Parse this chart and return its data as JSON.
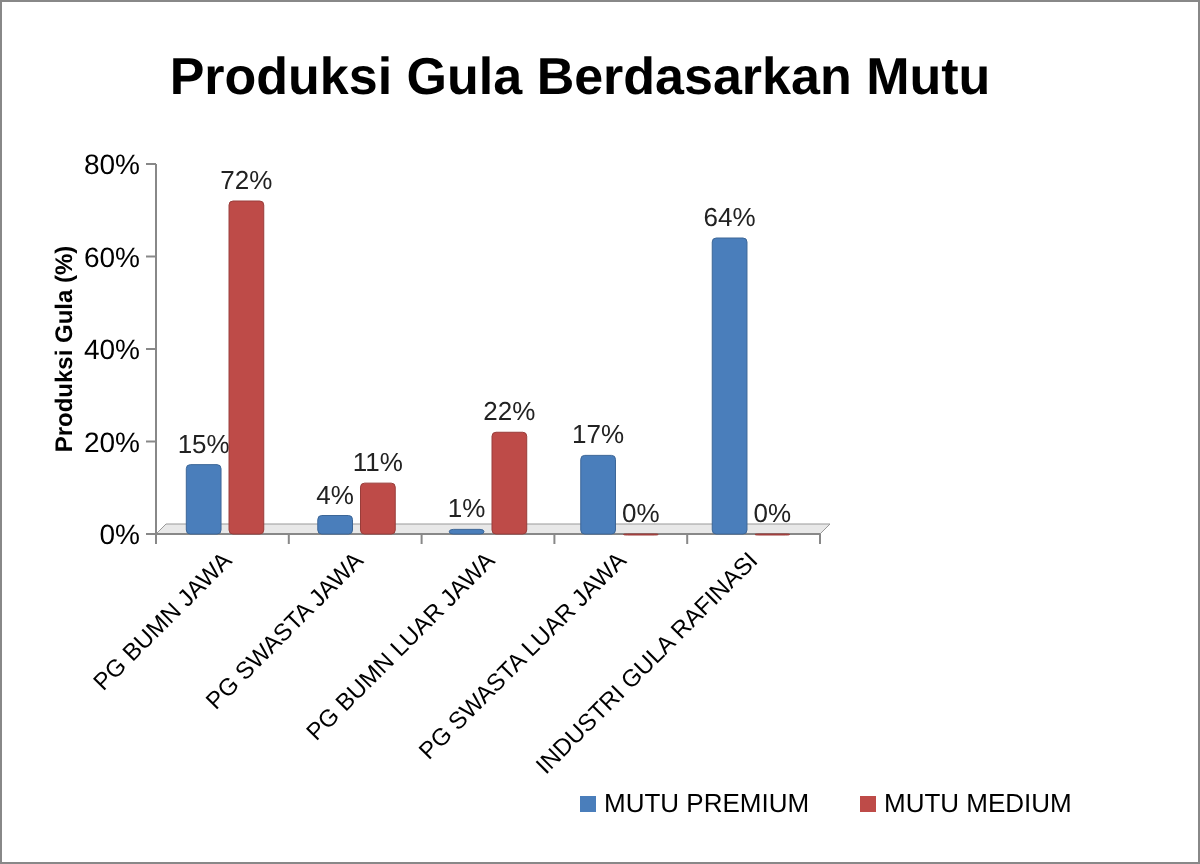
{
  "chart_data": {
    "type": "bar",
    "title": "Produksi Gula Berdasarkan Mutu",
    "ylabel": "Produksi Gula (%)",
    "categories": [
      "PG BUMN JAWA",
      "PG SWASTA JAWA",
      "PG BUMN LUAR JAWA",
      "PG SWASTA LUAR JAWA",
      "INDUSTRI GULA RAFINASI"
    ],
    "series": [
      {
        "name": "MUTU PREMIUM",
        "color": "#4a7ebb",
        "values": [
          15,
          4,
          1,
          17,
          64
        ],
        "value_labels": [
          "15%",
          "4%",
          "1%",
          "17%",
          "64%"
        ]
      },
      {
        "name": "MUTU MEDIUM",
        "color": "#be4b48",
        "values": [
          72,
          11,
          22,
          0,
          0
        ],
        "value_labels": [
          "72%",
          "11%",
          "22%",
          "0%",
          "0%"
        ]
      }
    ],
    "ylim": [
      0,
      80
    ],
    "yticks": [
      {
        "value": 0,
        "label": "0%"
      },
      {
        "value": 20,
        "label": "20%"
      },
      {
        "value": 40,
        "label": "40%"
      },
      {
        "value": 60,
        "label": "60%"
      },
      {
        "value": 80,
        "label": "80%"
      }
    ],
    "grid": false,
    "legend": "bottom"
  }
}
